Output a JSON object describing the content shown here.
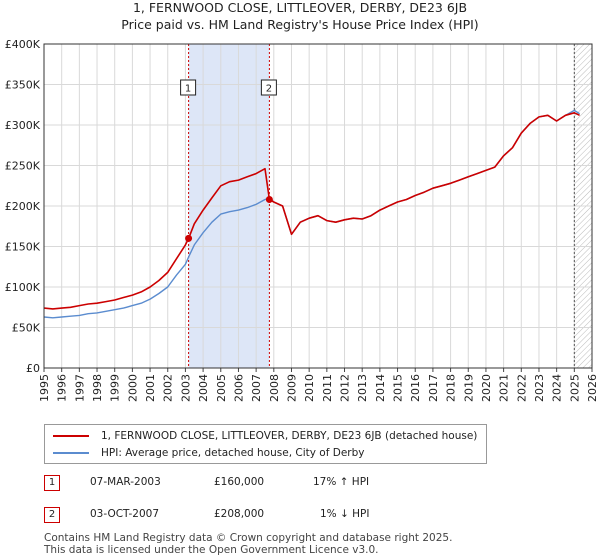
{
  "title_line1": "1, FERNWOOD CLOSE, LITTLEOVER, DERBY, DE23 6JB",
  "title_line2": "Price paid vs. HM Land Registry's House Price Index (HPI)",
  "legend": {
    "property": "1, FERNWOOD CLOSE, LITTLEOVER, DERBY, DE23 6JB (detached house)",
    "hpi": "HPI: Average price, detached house, City of Derby"
  },
  "transactions": [
    {
      "num": "1",
      "date": "07-MAR-2003",
      "price": "£160,000",
      "diff": "17% ↑ HPI"
    },
    {
      "num": "2",
      "date": "03-OCT-2007",
      "price": "£208,000",
      "diff": "1% ↓ HPI"
    }
  ],
  "footer": {
    "line1": "Contains HM Land Registry data © Crown copyright and database right 2025.",
    "line2": "This data is licensed under the Open Government Licence v3.0."
  },
  "colors": {
    "property": "#cc0000",
    "hpi": "#5b8ccf",
    "shade": "#dde6f7",
    "grid": "#d9d9d9"
  },
  "chart_data": {
    "type": "line",
    "title": "Price paid vs. HM Land Registry's House Price Index (HPI)",
    "xlabel": "",
    "ylabel": "",
    "xlim": [
      1995,
      2026
    ],
    "ylim": [
      0,
      400000
    ],
    "y_ticks": [
      {
        "value": 0,
        "label": "£0"
      },
      {
        "value": 50000,
        "label": "£50K"
      },
      {
        "value": 100000,
        "label": "£100K"
      },
      {
        "value": 150000,
        "label": "£150K"
      },
      {
        "value": 200000,
        "label": "£200K"
      },
      {
        "value": 250000,
        "label": "£250K"
      },
      {
        "value": 300000,
        "label": "£300K"
      },
      {
        "value": 350000,
        "label": "£350K"
      },
      {
        "value": 400000,
        "label": "£400K"
      }
    ],
    "x_ticks": [
      "1995",
      "1996",
      "1997",
      "1998",
      "1999",
      "2000",
      "2001",
      "2002",
      "2003",
      "2004",
      "2005",
      "2006",
      "2007",
      "2008",
      "2009",
      "2010",
      "2011",
      "2012",
      "2013",
      "2014",
      "2015",
      "2016",
      "2017",
      "2018",
      "2019",
      "2020",
      "2021",
      "2022",
      "2023",
      "2024",
      "2025",
      "2026"
    ],
    "shaded_period": [
      2003.18,
      2007.75
    ],
    "forecast_from": 2025.0,
    "markers": [
      {
        "label": "1",
        "x": 2003.18,
        "y": 160000
      },
      {
        "label": "2",
        "x": 2007.75,
        "y": 208000
      }
    ],
    "series": [
      {
        "name": "1, FERNWOOD CLOSE, LITTLEOVER, DERBY, DE23 6JB (detached house)",
        "color": "#cc0000",
        "x": [
          1995.0,
          1995.5,
          1996.0,
          1996.5,
          1997.0,
          1997.5,
          1998.0,
          1998.5,
          1999.0,
          1999.5,
          2000.0,
          2000.5,
          2001.0,
          2001.5,
          2002.0,
          2002.5,
          2003.0,
          2003.18,
          2003.5,
          2004.0,
          2004.5,
          2005.0,
          2005.5,
          2006.0,
          2006.5,
          2007.0,
          2007.5,
          2007.75,
          2008.0,
          2008.5,
          2009.0,
          2009.5,
          2010.0,
          2010.5,
          2011.0,
          2011.5,
          2012.0,
          2012.5,
          2013.0,
          2013.5,
          2014.0,
          2014.5,
          2015.0,
          2015.5,
          2016.0,
          2016.5,
          2017.0,
          2017.5,
          2018.0,
          2018.5,
          2019.0,
          2019.5,
          2020.0,
          2020.5,
          2021.0,
          2021.5,
          2022.0,
          2022.5,
          2023.0,
          2023.5,
          2024.0,
          2024.5,
          2025.0,
          2025.3
        ],
        "values": [
          74000,
          73000,
          74000,
          75000,
          77000,
          79000,
          80000,
          82000,
          84000,
          87000,
          90000,
          94000,
          100000,
          108000,
          118000,
          135000,
          152000,
          160000,
          178000,
          195000,
          210000,
          225000,
          230000,
          232000,
          236000,
          240000,
          246000,
          208000,
          205000,
          200000,
          165000,
          180000,
          185000,
          188000,
          182000,
          180000,
          183000,
          185000,
          184000,
          188000,
          195000,
          200000,
          205000,
          208000,
          213000,
          217000,
          222000,
          225000,
          228000,
          232000,
          236000,
          240000,
          244000,
          248000,
          262000,
          272000,
          290000,
          302000,
          310000,
          312000,
          305000,
          312000,
          315000,
          312000
        ]
      },
      {
        "name": "HPI: Average price, detached house, City of Derby",
        "color": "#5b8ccf",
        "x": [
          1995.0,
          1995.5,
          1996.0,
          1996.5,
          1997.0,
          1997.5,
          1998.0,
          1998.5,
          1999.0,
          1999.5,
          2000.0,
          2000.5,
          2001.0,
          2001.5,
          2002.0,
          2002.5,
          2003.0,
          2003.18,
          2003.5,
          2004.0,
          2004.5,
          2005.0,
          2005.5,
          2006.0,
          2006.5,
          2007.0,
          2007.5,
          2007.75,
          2008.0,
          2008.5,
          2009.0,
          2009.5,
          2010.0,
          2010.5,
          2011.0,
          2011.5,
          2012.0,
          2012.5,
          2013.0,
          2013.5,
          2014.0,
          2014.5,
          2015.0,
          2015.5,
          2016.0,
          2016.5,
          2017.0,
          2017.5,
          2018.0,
          2018.5,
          2019.0,
          2019.5,
          2020.0,
          2020.5,
          2021.0,
          2021.5,
          2022.0,
          2022.5,
          2023.0,
          2023.5,
          2024.0,
          2024.5,
          2025.0,
          2025.3
        ],
        "values": [
          63000,
          62000,
          63000,
          64000,
          65000,
          67000,
          68000,
          70000,
          72000,
          74000,
          77000,
          80000,
          85000,
          92000,
          100000,
          115000,
          128000,
          137000,
          152000,
          167000,
          180000,
          190000,
          193000,
          195000,
          198000,
          202000,
          208000,
          210000,
          205000,
          200000,
          165000,
          180000,
          185000,
          188000,
          182000,
          180000,
          183000,
          185000,
          184000,
          188000,
          195000,
          200000,
          205000,
          208000,
          213000,
          217000,
          222000,
          225000,
          228000,
          232000,
          236000,
          240000,
          244000,
          248000,
          262000,
          272000,
          290000,
          302000,
          310000,
          312000,
          305000,
          312000,
          318000,
          314000
        ]
      }
    ]
  }
}
